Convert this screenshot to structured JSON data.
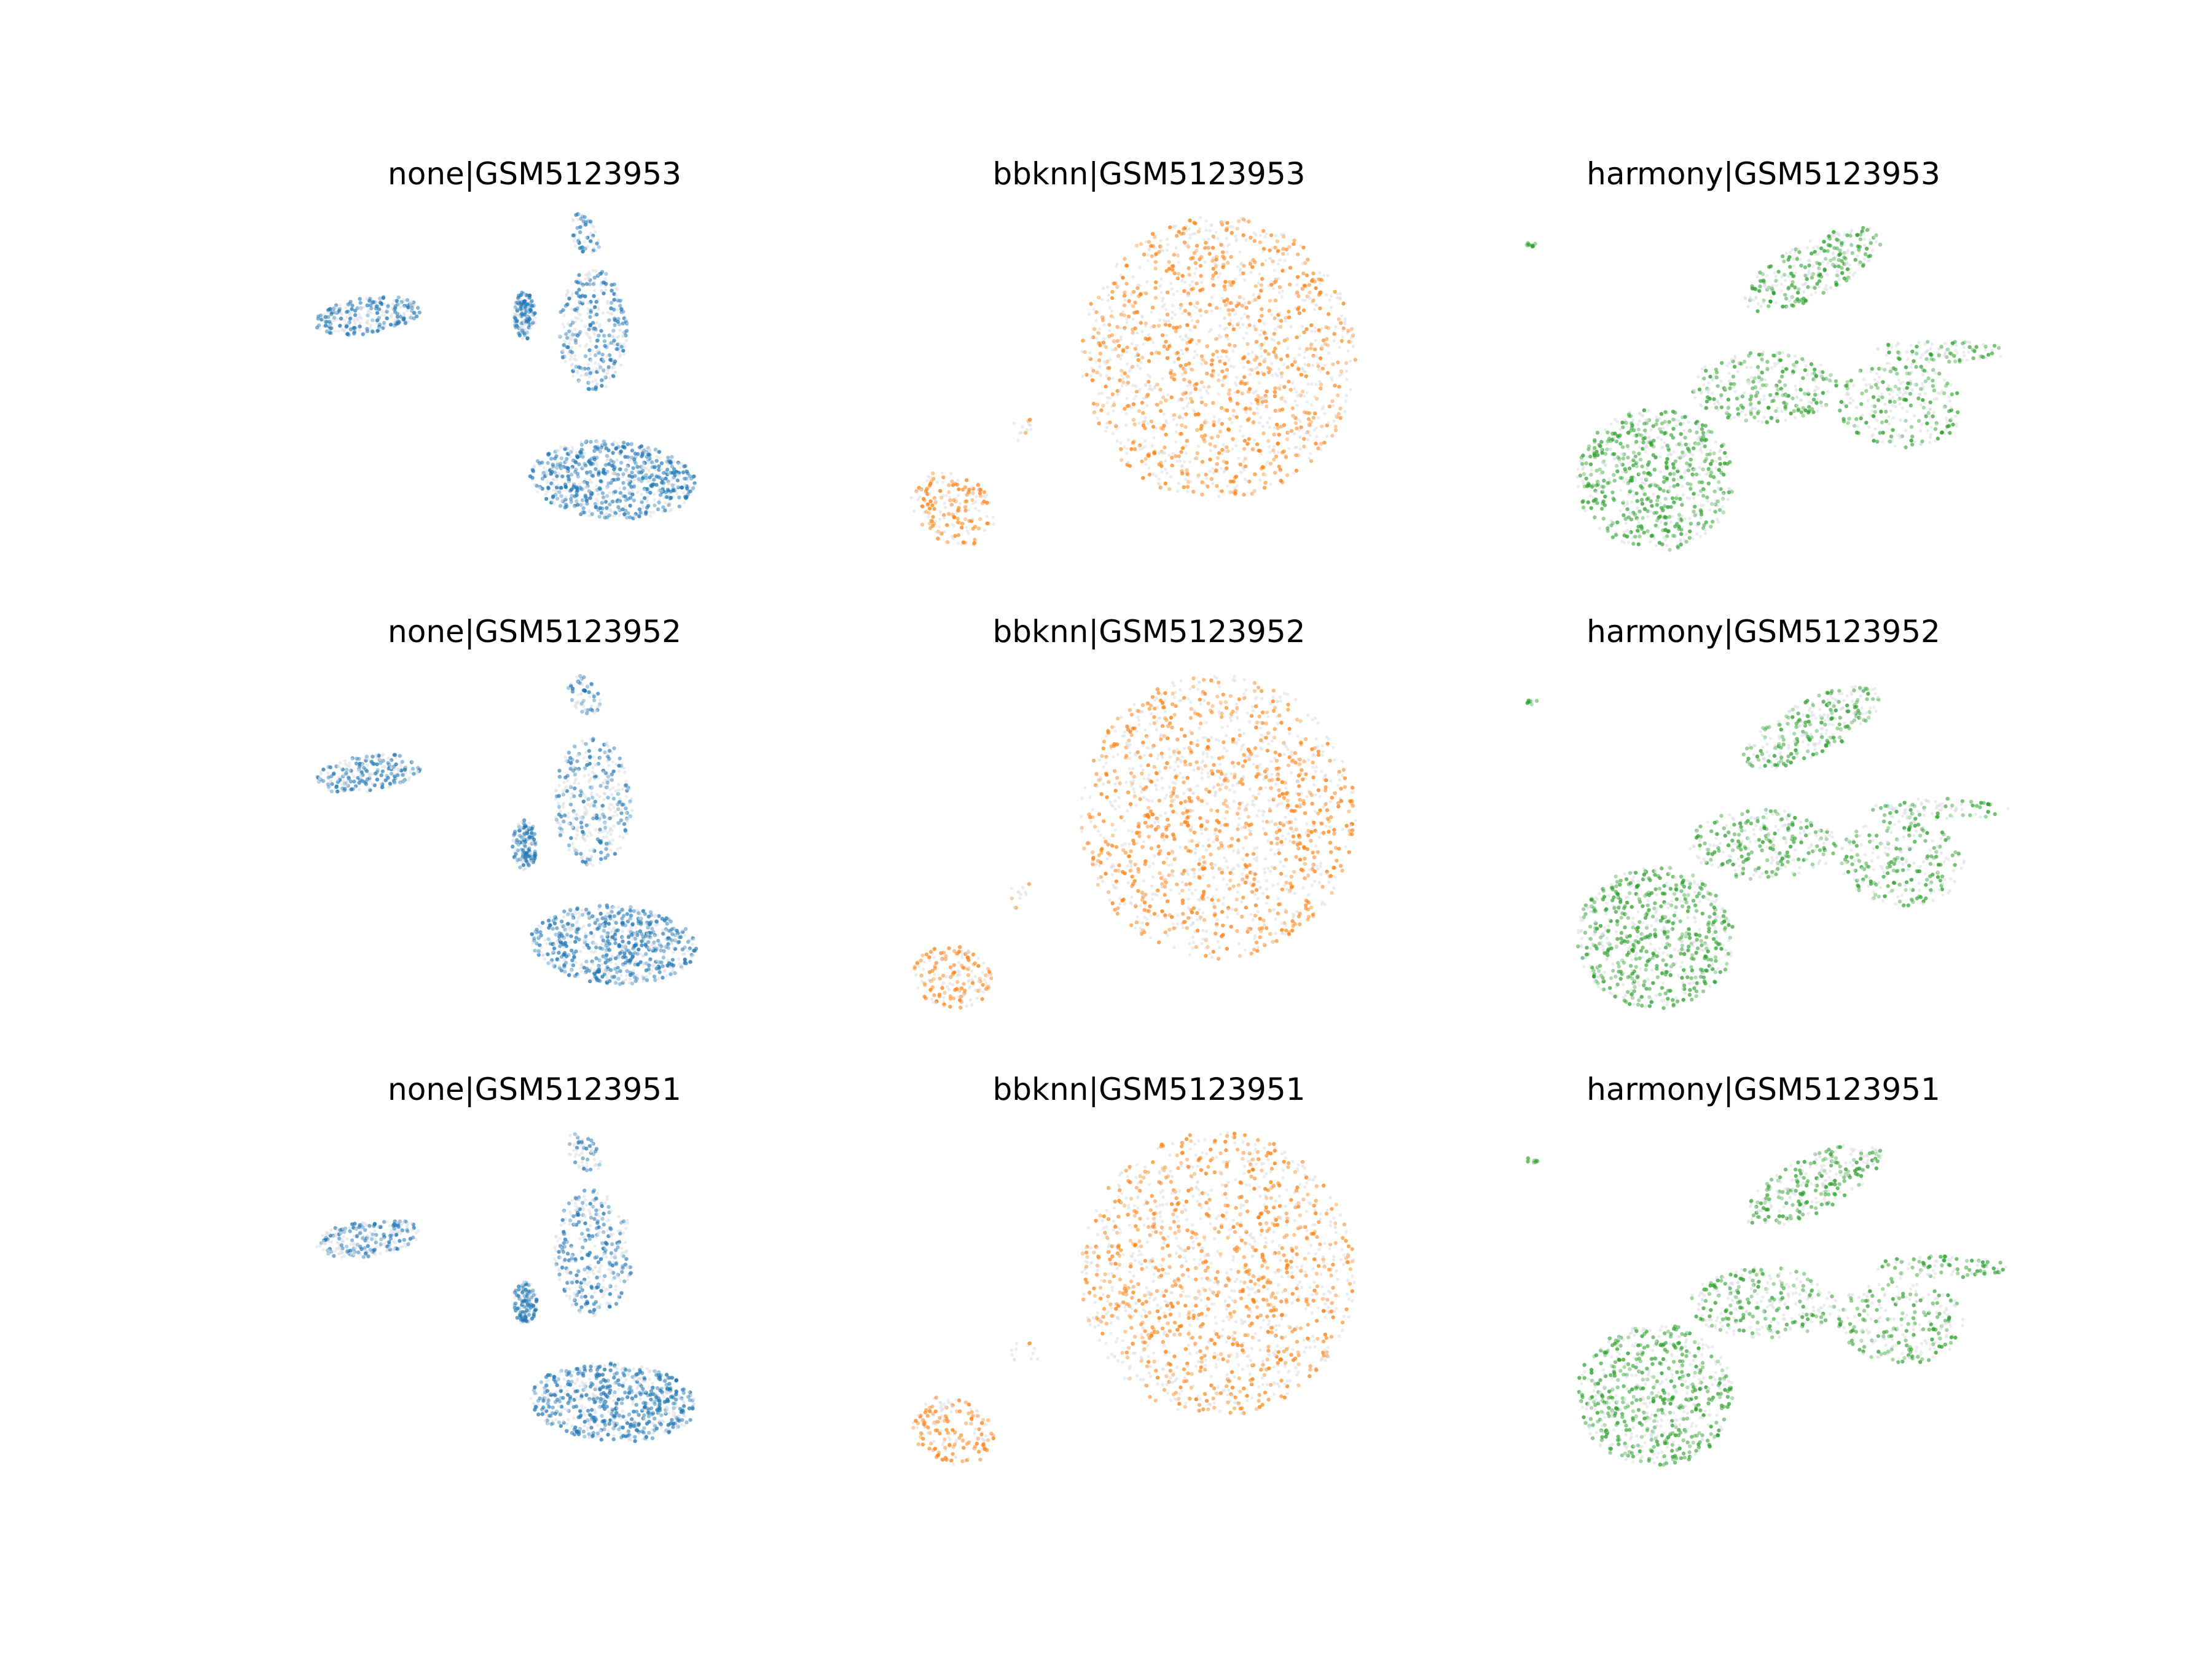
{
  "colors": {
    "background_points": "#d8dde3",
    "none": "#1f77b4",
    "bbknn": "#ff7f0e",
    "harmony": "#2ca02c"
  },
  "chart_data": [
    {
      "type": "scatter",
      "title": "none|GSM5123953",
      "method": "none",
      "sample": "GSM5123953",
      "color": "#1f77b4",
      "grid": false,
      "axes_visible": false,
      "xlim": [
        0,
        100
      ],
      "ylim": [
        0,
        100
      ],
      "seed": 11,
      "clusters": [
        {
          "shape": "ellipse",
          "cx": 16,
          "cy": 70,
          "rx": 11,
          "ry": 5,
          "rot": 12,
          "n": 260,
          "density": 0.55
        },
        {
          "shape": "ellipse",
          "cx": 48,
          "cy": 70,
          "rx": 2.2,
          "ry": 7,
          "rot": 0,
          "n": 140,
          "density": 0.6
        },
        {
          "shape": "ellipse",
          "cx": 62,
          "cy": 66,
          "rx": 7,
          "ry": 17,
          "rot": 0,
          "n": 360,
          "density": 0.45
        },
        {
          "shape": "ellipse",
          "cx": 66,
          "cy": 24,
          "rx": 17,
          "ry": 11,
          "rot": -6,
          "n": 700,
          "density": 0.6
        },
        {
          "shape": "ellipse",
          "cx": 60,
          "cy": 93,
          "rx": 3,
          "ry": 6,
          "rot": 20,
          "n": 60,
          "density": 0.5
        }
      ]
    },
    {
      "type": "scatter",
      "title": "bbknn|GSM5123953",
      "method": "bbknn",
      "sample": "GSM5123953",
      "color": "#ff7f0e",
      "grid": false,
      "axes_visible": false,
      "xlim": [
        0,
        100
      ],
      "ylim": [
        0,
        100
      ],
      "seed": 23,
      "clusters": [
        {
          "shape": "ellipse",
          "cx": 64,
          "cy": 58,
          "rx": 28,
          "ry": 40,
          "rot": 0,
          "n": 1500,
          "density": 0.5
        },
        {
          "shape": "ellipse",
          "cx": 10,
          "cy": 16,
          "rx": 8,
          "ry": 11,
          "rot": 25,
          "n": 180,
          "density": 0.6
        },
        {
          "shape": "ellipse",
          "cx": 25,
          "cy": 38,
          "rx": 3,
          "ry": 4,
          "rot": 0,
          "n": 12,
          "density": 0.3
        }
      ]
    },
    {
      "type": "scatter",
      "title": "harmony|GSM5123953",
      "method": "harmony",
      "sample": "GSM5123953",
      "color": "#2ca02c",
      "grid": false,
      "axes_visible": false,
      "xlim": [
        0,
        100
      ],
      "ylim": [
        0,
        100
      ],
      "seed": 37,
      "clusters": [
        {
          "shape": "ellipse",
          "cx": 60,
          "cy": 83,
          "rx": 17,
          "ry": 7,
          "rot": 38,
          "n": 300,
          "density": 0.5
        },
        {
          "shape": "ellipse",
          "cx": 28,
          "cy": 24,
          "rx": 16,
          "ry": 20,
          "rot": 0,
          "n": 700,
          "density": 0.55
        },
        {
          "shape": "ellipse",
          "cx": 50,
          "cy": 50,
          "rx": 15,
          "ry": 10,
          "rot": 0,
          "n": 300,
          "density": 0.45
        },
        {
          "shape": "ellipse",
          "cx": 78,
          "cy": 45,
          "rx": 13,
          "ry": 12,
          "rot": -20,
          "n": 260,
          "density": 0.45
        },
        {
          "shape": "ellipse",
          "cx": 86,
          "cy": 60,
          "rx": 14,
          "ry": 3,
          "rot": 0,
          "n": 100,
          "density": 0.5
        },
        {
          "shape": "ellipse",
          "cx": 3,
          "cy": 90,
          "rx": 1.2,
          "ry": 0.8,
          "rot": 0,
          "n": 8,
          "density": 0.9
        }
      ]
    },
    {
      "type": "scatter",
      "title": "none|GSM5123952",
      "method": "none",
      "sample": "GSM5123952",
      "color": "#1f77b4",
      "grid": false,
      "axes_visible": false,
      "xlim": [
        0,
        100
      ],
      "ylim": [
        0,
        100
      ],
      "seed": 41,
      "clusters": [
        {
          "shape": "ellipse",
          "cx": 16,
          "cy": 70,
          "rx": 11,
          "ry": 5,
          "rot": 12,
          "n": 250,
          "density": 0.5
        },
        {
          "shape": "ellipse",
          "cx": 48,
          "cy": 50,
          "rx": 2.5,
          "ry": 7,
          "rot": 0,
          "n": 150,
          "density": 0.6
        },
        {
          "shape": "ellipse",
          "cx": 62,
          "cy": 62,
          "rx": 8,
          "ry": 18,
          "rot": 0,
          "n": 380,
          "density": 0.45
        },
        {
          "shape": "ellipse",
          "cx": 66,
          "cy": 22,
          "rx": 17,
          "ry": 11,
          "rot": -6,
          "n": 720,
          "density": 0.6
        },
        {
          "shape": "ellipse",
          "cx": 60,
          "cy": 92,
          "rx": 3,
          "ry": 6,
          "rot": 20,
          "n": 60,
          "density": 0.5
        }
      ]
    },
    {
      "type": "scatter",
      "title": "bbknn|GSM5123952",
      "method": "bbknn",
      "sample": "GSM5123952",
      "color": "#ff7f0e",
      "grid": false,
      "axes_visible": false,
      "xlim": [
        0,
        100
      ],
      "ylim": [
        0,
        100
      ],
      "seed": 53,
      "clusters": [
        {
          "shape": "ellipse",
          "cx": 64,
          "cy": 58,
          "rx": 28,
          "ry": 40,
          "rot": 0,
          "n": 1500,
          "density": 0.5
        },
        {
          "shape": "ellipse",
          "cx": 10,
          "cy": 13,
          "rx": 8,
          "ry": 9,
          "rot": 25,
          "n": 170,
          "density": 0.6
        },
        {
          "shape": "ellipse",
          "cx": 24,
          "cy": 36,
          "rx": 3,
          "ry": 4,
          "rot": 0,
          "n": 12,
          "density": 0.3
        }
      ]
    },
    {
      "type": "scatter",
      "title": "harmony|GSM5123952",
      "method": "harmony",
      "sample": "GSM5123952",
      "color": "#2ca02c",
      "grid": false,
      "axes_visible": false,
      "xlim": [
        0,
        100
      ],
      "ylim": [
        0,
        100
      ],
      "seed": 67,
      "clusters": [
        {
          "shape": "ellipse",
          "cx": 60,
          "cy": 83,
          "rx": 17,
          "ry": 7,
          "rot": 38,
          "n": 300,
          "density": 0.5
        },
        {
          "shape": "ellipse",
          "cx": 28,
          "cy": 24,
          "rx": 16,
          "ry": 20,
          "rot": 0,
          "n": 720,
          "density": 0.55
        },
        {
          "shape": "ellipse",
          "cx": 50,
          "cy": 50,
          "rx": 15,
          "ry": 10,
          "rot": 0,
          "n": 300,
          "density": 0.45
        },
        {
          "shape": "ellipse",
          "cx": 78,
          "cy": 45,
          "rx": 13,
          "ry": 12,
          "rot": -20,
          "n": 260,
          "density": 0.45
        },
        {
          "shape": "ellipse",
          "cx": 86,
          "cy": 60,
          "rx": 14,
          "ry": 3,
          "rot": 0,
          "n": 100,
          "density": 0.5
        },
        {
          "shape": "ellipse",
          "cx": 3,
          "cy": 90,
          "rx": 1.2,
          "ry": 0.8,
          "rot": 0,
          "n": 8,
          "density": 0.9
        }
      ]
    },
    {
      "type": "scatter",
      "title": "none|GSM5123951",
      "method": "none",
      "sample": "GSM5123951",
      "color": "#1f77b4",
      "grid": false,
      "axes_visible": false,
      "xlim": [
        0,
        100
      ],
      "ylim": [
        0,
        100
      ],
      "seed": 71,
      "clusters": [
        {
          "shape": "ellipse",
          "cx": 16,
          "cy": 68,
          "rx": 11,
          "ry": 5,
          "rot": 12,
          "n": 260,
          "density": 0.5
        },
        {
          "shape": "ellipse",
          "cx": 48,
          "cy": 50,
          "rx": 2.5,
          "ry": 6,
          "rot": 0,
          "n": 140,
          "density": 0.6
        },
        {
          "shape": "ellipse",
          "cx": 62,
          "cy": 64,
          "rx": 8,
          "ry": 18,
          "rot": 0,
          "n": 380,
          "density": 0.45
        },
        {
          "shape": "ellipse",
          "cx": 66,
          "cy": 22,
          "rx": 17,
          "ry": 11,
          "rot": -6,
          "n": 720,
          "density": 0.6
        },
        {
          "shape": "ellipse",
          "cx": 60,
          "cy": 92,
          "rx": 3,
          "ry": 6,
          "rot": 20,
          "n": 60,
          "density": 0.5
        }
      ]
    },
    {
      "type": "scatter",
      "title": "bbknn|GSM5123951",
      "method": "bbknn",
      "sample": "GSM5123951",
      "color": "#ff7f0e",
      "grid": false,
      "axes_visible": false,
      "xlim": [
        0,
        100
      ],
      "ylim": [
        0,
        100
      ],
      "seed": 83,
      "clusters": [
        {
          "shape": "ellipse",
          "cx": 64,
          "cy": 58,
          "rx": 28,
          "ry": 40,
          "rot": 0,
          "n": 1500,
          "density": 0.5
        },
        {
          "shape": "ellipse",
          "cx": 10,
          "cy": 14,
          "rx": 8,
          "ry": 10,
          "rot": 25,
          "n": 170,
          "density": 0.6
        },
        {
          "shape": "ellipse",
          "cx": 25,
          "cy": 36,
          "rx": 3,
          "ry": 4,
          "rot": 0,
          "n": 12,
          "density": 0.3
        }
      ]
    },
    {
      "type": "scatter",
      "title": "harmony|GSM5123951",
      "method": "harmony",
      "sample": "GSM5123951",
      "color": "#2ca02c",
      "grid": false,
      "axes_visible": false,
      "xlim": [
        0,
        100
      ],
      "ylim": [
        0,
        100
      ],
      "seed": 97,
      "clusters": [
        {
          "shape": "ellipse",
          "cx": 60,
          "cy": 83,
          "rx": 17,
          "ry": 7,
          "rot": 38,
          "n": 300,
          "density": 0.5
        },
        {
          "shape": "ellipse",
          "cx": 28,
          "cy": 24,
          "rx": 16,
          "ry": 20,
          "rot": 0,
          "n": 720,
          "density": 0.55
        },
        {
          "shape": "ellipse",
          "cx": 50,
          "cy": 50,
          "rx": 15,
          "ry": 10,
          "rot": 0,
          "n": 300,
          "density": 0.45
        },
        {
          "shape": "ellipse",
          "cx": 78,
          "cy": 45,
          "rx": 13,
          "ry": 12,
          "rot": -20,
          "n": 260,
          "density": 0.45
        },
        {
          "shape": "ellipse",
          "cx": 86,
          "cy": 60,
          "rx": 14,
          "ry": 3,
          "rot": 0,
          "n": 100,
          "density": 0.5
        },
        {
          "shape": "ellipse",
          "cx": 3,
          "cy": 90,
          "rx": 1.2,
          "ry": 0.8,
          "rot": 0,
          "n": 8,
          "density": 0.9
        }
      ]
    }
  ]
}
